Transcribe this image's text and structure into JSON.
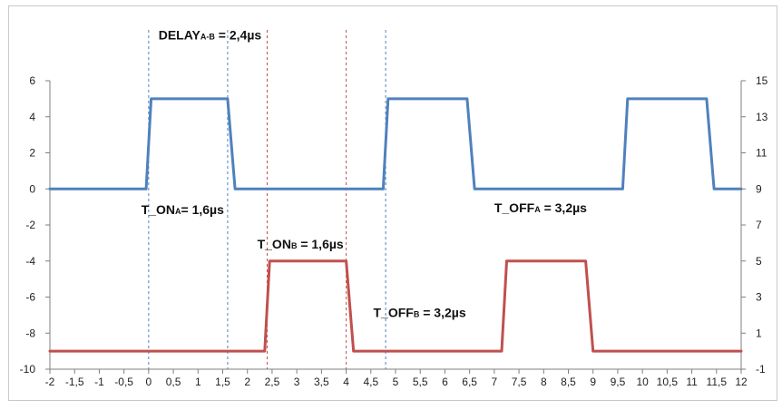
{
  "chart_data": {
    "type": "line",
    "title": "",
    "xlabel": "",
    "ylabel": "",
    "xlim": [
      -2,
      12
    ],
    "x_ticks": [
      "-2",
      "-1,5",
      "-1",
      "-0,5",
      "0",
      "0,5",
      "1",
      "1,5",
      "2",
      "2,5",
      "3",
      "3,5",
      "4",
      "4,5",
      "5",
      "5,5",
      "6",
      "6,5",
      "7",
      "7,5",
      "8",
      "8,5",
      "9",
      "9,5",
      "10",
      "10,5",
      "11",
      "11,5",
      "12"
    ],
    "ylim_left": [
      -10,
      6
    ],
    "y_left_ticks": [
      "6",
      "4",
      "2",
      "0",
      "-2",
      "-4",
      "-6",
      "-8",
      "-10"
    ],
    "ylim_right": [
      -1,
      15
    ],
    "y_right_ticks": [
      "15",
      "13",
      "11",
      "9",
      "7",
      "5",
      "3",
      "1",
      "-1"
    ],
    "grid": false,
    "legend": "none",
    "series": [
      {
        "color": "#4f81bd",
        "axis": "left",
        "x": [
          -2,
          -0.05,
          0.05,
          0.2,
          1.5,
          1.6,
          1.75,
          4.75,
          4.85,
          5.0,
          6.35,
          6.45,
          6.6,
          9.6,
          9.7,
          9.85,
          11.2,
          11.3,
          11.45,
          12
        ],
        "y": [
          0,
          0,
          5,
          5,
          5,
          5,
          0,
          0,
          5,
          5,
          5,
          5,
          0,
          0,
          5,
          5,
          5,
          5,
          0,
          0
        ]
      },
      {
        "color": "#c0504d",
        "axis": "right",
        "x": [
          -2,
          2.35,
          2.45,
          2.6,
          3.9,
          4.0,
          4.15,
          7.15,
          7.25,
          7.4,
          8.75,
          8.85,
          9.0,
          12
        ],
        "y": [
          0,
          0,
          5,
          5,
          5,
          5,
          0,
          0,
          5,
          5,
          5,
          5,
          0,
          0
        ]
      }
    ],
    "markers": [
      {
        "x": 0,
        "color": "#4f81bd"
      },
      {
        "x": 1.6,
        "color": "#4f81bd"
      },
      {
        "x": 2.4,
        "color": "#c0504d"
      },
      {
        "x": 4.0,
        "color": "#c0504d"
      },
      {
        "x": 4.8,
        "color": "#4f81bd"
      }
    ],
    "annotations": [
      {
        "main": "DELAY",
        "sub": "A-B",
        "rest": " = 2,4µs",
        "x": 0.2,
        "y": 8.3
      },
      {
        "main": "T_ON",
        "sub": "A",
        "rest": "= 1,6µs",
        "x": -0.15,
        "y": -1.4
      },
      {
        "main": "T_ON",
        "sub": "B",
        "rest": " = 1,6µs",
        "x": 2.2,
        "y": -3.3
      },
      {
        "main": "T_OFF",
        "sub": "A",
        "rest": " = 3,2µs",
        "x": 7.0,
        "y": -1.3
      },
      {
        "main": "T_OFF",
        "sub": "B",
        "rest": " = 3,2µs",
        "x": 4.55,
        "y": -7.1
      }
    ]
  }
}
